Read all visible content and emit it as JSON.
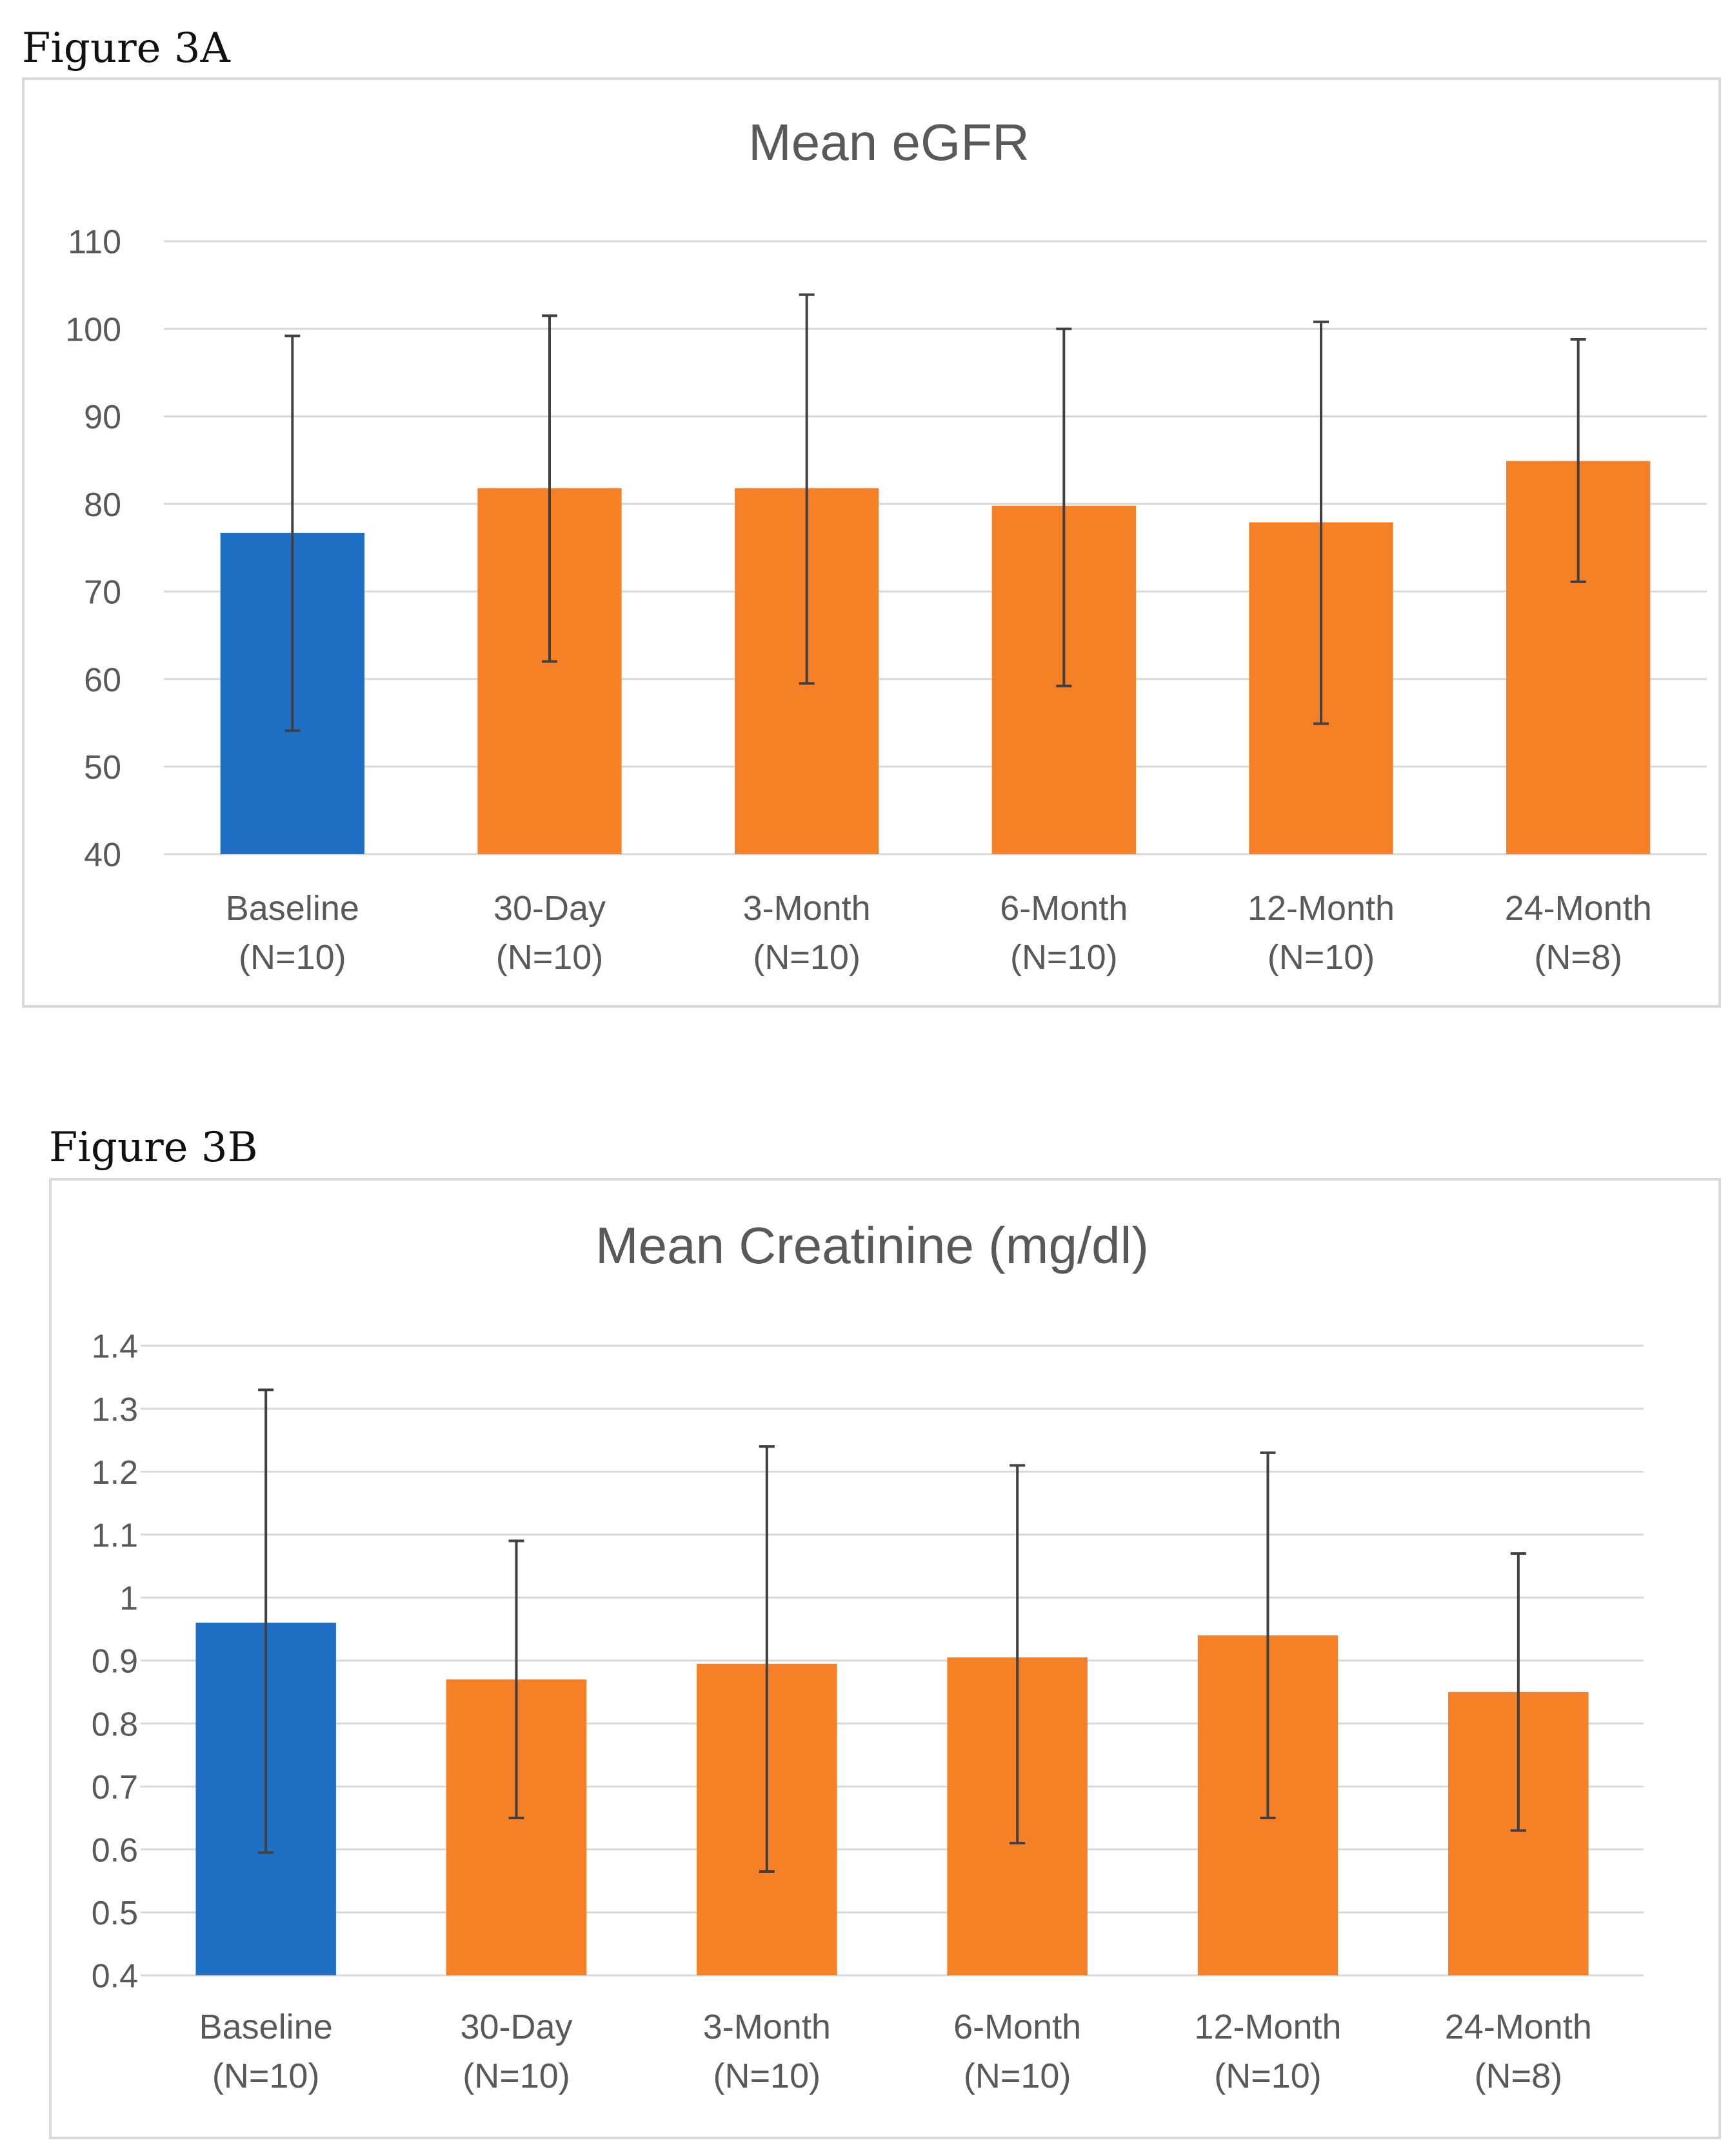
{
  "figures": {
    "a": {
      "label": "Figure 3A"
    },
    "b": {
      "label": "Figure 3B"
    }
  },
  "chart_data": [
    {
      "type": "bar",
      "title": "Mean eGFR",
      "xlabel": "",
      "ylabel": "",
      "categories": [
        "Baseline (N=10)",
        "30-Day (N=10)",
        "3-Month (N=10)",
        "6-Month (N=10)",
        "12-Month (N=10)",
        "24-Month (N=8)"
      ],
      "category_lines": [
        [
          "Baseline",
          "(N=10)"
        ],
        [
          "30-Day",
          "(N=10)"
        ],
        [
          "3-Month",
          "(N=10)"
        ],
        [
          "6-Month",
          "(N=10)"
        ],
        [
          "12-Month",
          "(N=10)"
        ],
        [
          "24-Month",
          "(N=8)"
        ]
      ],
      "values": [
        76.7,
        81.8,
        81.8,
        79.8,
        77.9,
        84.9
      ],
      "error_low": [
        54.1,
        62.0,
        59.5,
        59.2,
        54.9,
        71.1
      ],
      "error_high": [
        99.2,
        101.5,
        103.9,
        100.0,
        100.8,
        98.8
      ],
      "bar_colors": [
        "#1f6fc5",
        "#f58025",
        "#f58025",
        "#f58025",
        "#f58025",
        "#f58025"
      ],
      "ylim": [
        40,
        110
      ],
      "yticks": [
        40,
        50,
        60,
        70,
        80,
        90,
        100,
        110
      ],
      "ytick_labels": [
        "40",
        "50",
        "60",
        "70",
        "80",
        "90",
        "100",
        "110"
      ],
      "grid": true
    },
    {
      "type": "bar",
      "title": "Mean Creatinine (mg/dl)",
      "xlabel": "",
      "ylabel": "",
      "categories": [
        "Baseline (N=10)",
        "30-Day (N=10)",
        "3-Month (N=10)",
        "6-Month (N=10)",
        "12-Month (N=10)",
        "24-Month (N=8)"
      ],
      "category_lines": [
        [
          "Baseline",
          "(N=10)"
        ],
        [
          "30-Day",
          "(N=10)"
        ],
        [
          "3-Month",
          "(N=10)"
        ],
        [
          "6-Month",
          "(N=10)"
        ],
        [
          "12-Month",
          "(N=10)"
        ],
        [
          "24-Month",
          "(N=8)"
        ]
      ],
      "values": [
        0.96,
        0.87,
        0.895,
        0.905,
        0.94,
        0.85
      ],
      "error_low": [
        0.595,
        0.65,
        0.565,
        0.61,
        0.65,
        0.63
      ],
      "error_high": [
        1.33,
        1.09,
        1.24,
        1.21,
        1.23,
        1.07
      ],
      "bar_colors": [
        "#1f6fc5",
        "#f58025",
        "#f58025",
        "#f58025",
        "#f58025",
        "#f58025"
      ],
      "ylim": [
        0.4,
        1.4
      ],
      "yticks": [
        0.4,
        0.5,
        0.6,
        0.7,
        0.8,
        0.9,
        1.0,
        1.1,
        1.2,
        1.3,
        1.4
      ],
      "ytick_labels": [
        "0.4",
        "0.5",
        "0.6",
        "0.7",
        "0.8",
        "0.9",
        "1",
        "1.1",
        "1.2",
        "1.3",
        "1.4"
      ],
      "grid": true
    }
  ]
}
